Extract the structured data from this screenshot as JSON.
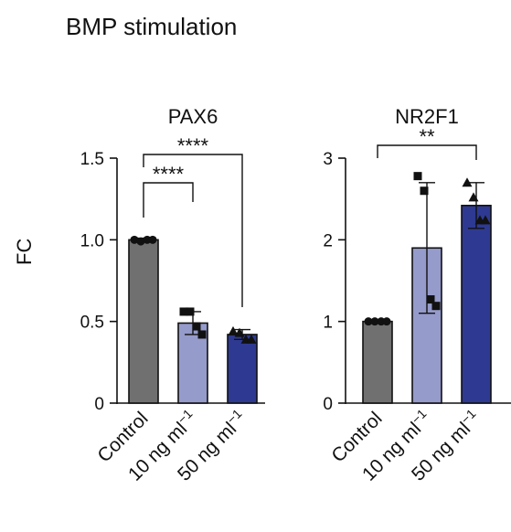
{
  "figure": {
    "title": "BMP stimulation",
    "ylabel": "FC"
  },
  "colors": {
    "control": "#707070",
    "low": "#959bca",
    "high": "#2e3a91"
  },
  "chart_data": [
    {
      "type": "bar",
      "title": "PAX6",
      "ylabel": "FC",
      "categories": [
        "Control",
        "10 ng ml−1",
        "50 ng ml−1"
      ],
      "category_parts": [
        [
          "Control",
          ""
        ],
        [
          "10 ng ml",
          "−1"
        ],
        [
          "50 ng ml",
          "−1"
        ]
      ],
      "values": [
        1.0,
        0.49,
        0.42
      ],
      "errors": [
        0.01,
        0.07,
        0.03
      ],
      "ylim": [
        0,
        1.5
      ],
      "yticks": [
        0,
        0.5,
        1.0,
        1.5
      ],
      "ytick_labels": [
        "0",
        "0.5",
        "1.0",
        "1.5"
      ],
      "markers": [
        "circle",
        "square",
        "triangle"
      ],
      "points": [
        [
          1.0,
          0.99,
          1.0,
          1.0
        ],
        [
          0.56,
          0.56,
          0.47,
          0.42
        ],
        [
          0.44,
          0.43,
          0.39,
          0.39
        ]
      ],
      "significance": [
        {
          "from": 0,
          "to": 1,
          "label": "****"
        },
        {
          "from": 0,
          "to": 2,
          "label": "****"
        }
      ]
    },
    {
      "type": "bar",
      "title": "NR2F1",
      "ylabel": "",
      "categories": [
        "Control",
        "10 ng ml−1",
        "50 ng ml−1"
      ],
      "category_parts": [
        [
          "Control",
          ""
        ],
        [
          "10 ng ml",
          "−1"
        ],
        [
          "50 ng ml",
          "−1"
        ]
      ],
      "values": [
        1.0,
        1.9,
        2.42
      ],
      "errors": [
        0.02,
        0.8,
        0.28
      ],
      "ylim": [
        0,
        3
      ],
      "yticks": [
        0,
        1,
        2,
        3
      ],
      "ytick_labels": [
        "0",
        "1",
        "2",
        "3"
      ],
      "markers": [
        "circle",
        "square",
        "triangle"
      ],
      "points": [
        [
          1.0,
          1.0,
          1.0,
          1.0
        ],
        [
          2.78,
          2.6,
          1.27,
          1.19
        ],
        [
          2.7,
          2.52,
          2.24,
          2.24
        ]
      ],
      "significance": [
        {
          "from": 0,
          "to": 2,
          "label": "**"
        }
      ]
    }
  ]
}
